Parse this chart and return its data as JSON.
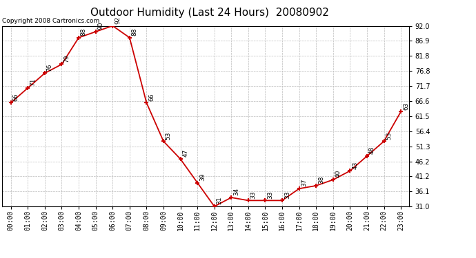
{
  "title": "Outdoor Humidity (Last 24 Hours)  20080902",
  "copyright": "Copyright 2008 Cartronics.com",
  "x_labels": [
    "00:00",
    "01:00",
    "02:00",
    "03:00",
    "04:00",
    "05:00",
    "06:00",
    "07:00",
    "08:00",
    "09:00",
    "10:00",
    "11:00",
    "12:00",
    "13:00",
    "14:00",
    "15:00",
    "16:00",
    "17:00",
    "18:00",
    "19:00",
    "20:00",
    "21:00",
    "22:00",
    "23:00"
  ],
  "y_values": [
    66,
    71,
    76,
    79,
    88,
    90,
    92,
    88,
    66,
    53,
    47,
    39,
    31,
    34,
    33,
    33,
    33,
    37,
    38,
    40,
    43,
    48,
    53,
    63
  ],
  "y_min": 31.0,
  "y_max": 92.0,
  "y_ticks": [
    31.0,
    36.1,
    41.2,
    46.2,
    51.3,
    56.4,
    61.5,
    66.6,
    71.7,
    76.8,
    81.8,
    86.9,
    92.0
  ],
  "line_color": "#cc0000",
  "marker_color": "#cc0000",
  "bg_color": "#ffffff",
  "grid_color": "#bbbbbb",
  "title_fontsize": 11,
  "label_fontsize": 6.5,
  "tick_fontsize": 7,
  "copyright_fontsize": 6.5
}
